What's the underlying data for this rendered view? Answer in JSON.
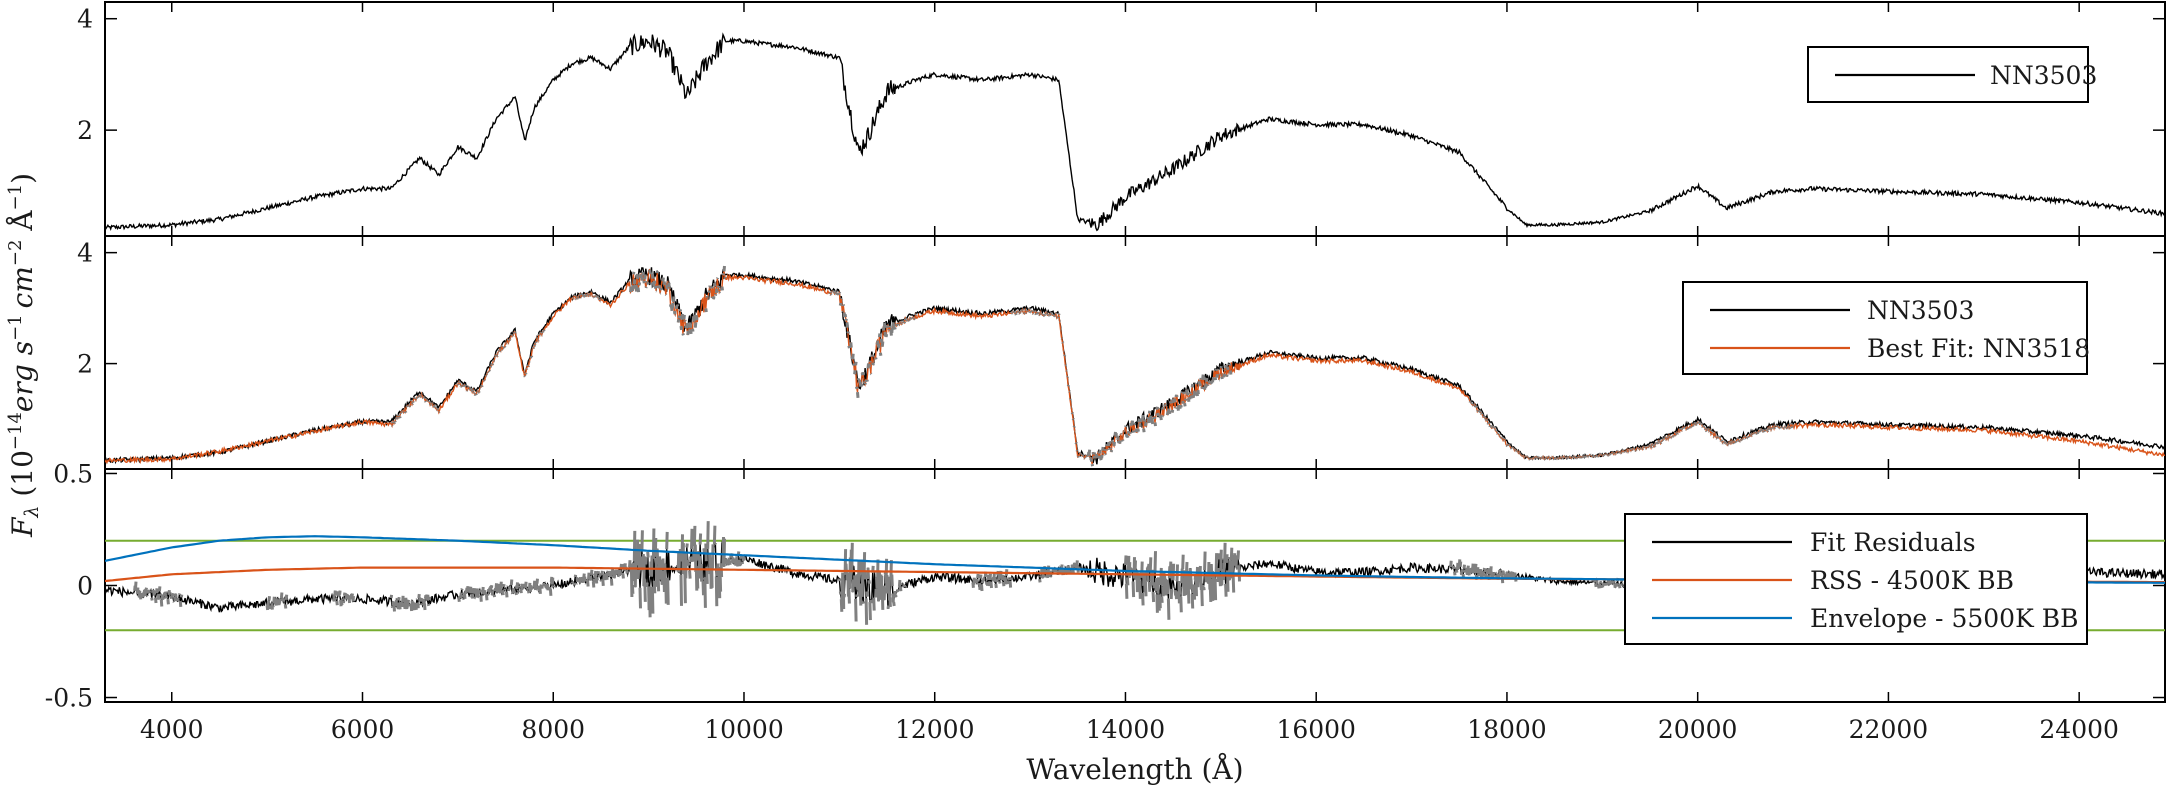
{
  "chart_data": [
    {
      "type": "line",
      "panel": "top",
      "xlabel": "",
      "ylabel": "",
      "xlim": [
        3300,
        24900
      ],
      "ylim": [
        0.1,
        4.3
      ],
      "yticks": [
        "4",
        "2"
      ],
      "ytick_values": [
        4,
        2
      ],
      "legend_position": "top-right",
      "series": [
        {
          "name": "NN3503",
          "color": "#000000",
          "x": [
            3300,
            4000,
            4500,
            5000,
            5500,
            6000,
            6300,
            6600,
            6800,
            7000,
            7200,
            7400,
            7600,
            7700,
            7800,
            8000,
            8200,
            8400,
            8600,
            8800,
            9000,
            9200,
            9400,
            9600,
            9800,
            10000,
            10200,
            10500,
            11000,
            11200,
            11300,
            11500,
            11800,
            12000,
            12500,
            13000,
            13300,
            13500,
            13700,
            14000,
            14500,
            15000,
            15500,
            16000,
            16500,
            17000,
            17500,
            18000,
            18200,
            18500,
            19000,
            19500,
            20000,
            20300,
            20800,
            21200,
            22000,
            23000,
            24000,
            24900
          ],
          "y": [
            0.25,
            0.3,
            0.4,
            0.6,
            0.8,
            0.95,
            0.95,
            1.5,
            1.2,
            1.7,
            1.5,
            2.2,
            2.6,
            1.8,
            2.4,
            2.9,
            3.2,
            3.3,
            3.1,
            3.5,
            3.6,
            3.4,
            2.6,
            3.2,
            3.6,
            3.6,
            3.55,
            3.5,
            3.3,
            1.6,
            1.9,
            2.7,
            2.9,
            3.0,
            2.9,
            3.0,
            2.9,
            0.4,
            0.3,
            0.8,
            1.3,
            1.9,
            2.2,
            2.1,
            2.1,
            1.9,
            1.6,
            0.6,
            0.3,
            0.3,
            0.35,
            0.55,
            1.0,
            0.6,
            0.9,
            0.95,
            0.9,
            0.85,
            0.7,
            0.5
          ]
        }
      ]
    },
    {
      "type": "line",
      "panel": "middle",
      "xlabel": "",
      "ylabel": "",
      "xlim": [
        3300,
        24900
      ],
      "ylim": [
        0.1,
        4.3
      ],
      "yticks": [
        "4",
        "2"
      ],
      "ytick_values": [
        4,
        2
      ],
      "legend_position": "top-right",
      "series": [
        {
          "name": "NN3503",
          "color": "#000000",
          "x": [
            3300,
            4000,
            4500,
            5000,
            5500,
            6000,
            6300,
            6600,
            6800,
            7000,
            7200,
            7400,
            7600,
            7700,
            7800,
            8000,
            8200,
            8400,
            8600,
            8800,
            9000,
            9200,
            9400,
            9600,
            9800,
            10000,
            10200,
            10500,
            11000,
            11200,
            11300,
            11500,
            11800,
            12000,
            12500,
            13000,
            13300,
            13500,
            13700,
            14000,
            14500,
            15000,
            15500,
            16000,
            16500,
            17000,
            17500,
            18000,
            18200,
            18500,
            19000,
            19500,
            20000,
            20300,
            20800,
            21200,
            22000,
            23000,
            24000,
            24900
          ],
          "y": [
            0.25,
            0.3,
            0.4,
            0.6,
            0.8,
            0.95,
            0.95,
            1.5,
            1.2,
            1.7,
            1.5,
            2.2,
            2.6,
            1.8,
            2.4,
            2.9,
            3.2,
            3.3,
            3.1,
            3.5,
            3.6,
            3.4,
            2.6,
            3.2,
            3.6,
            3.6,
            3.55,
            3.5,
            3.3,
            1.6,
            1.9,
            2.7,
            2.9,
            3.0,
            2.9,
            3.0,
            2.9,
            0.4,
            0.3,
            0.8,
            1.3,
            1.9,
            2.2,
            2.1,
            2.1,
            1.9,
            1.6,
            0.6,
            0.3,
            0.3,
            0.35,
            0.55,
            1.0,
            0.6,
            0.9,
            0.95,
            0.9,
            0.85,
            0.7,
            0.5
          ]
        },
        {
          "name": "Best Fit: NN3518",
          "color": "#d95319",
          "x": [
            3300,
            4000,
            4500,
            5000,
            5500,
            6000,
            6300,
            6600,
            6800,
            7000,
            7200,
            7400,
            7600,
            7700,
            7800,
            8000,
            8200,
            8400,
            8600,
            8800,
            9000,
            9200,
            9400,
            9600,
            9800,
            10000,
            10200,
            10500,
            11000,
            11200,
            11300,
            11500,
            11800,
            12000,
            12500,
            13000,
            13300,
            13500,
            13700,
            14000,
            14500,
            15000,
            15500,
            16000,
            16500,
            17000,
            17500,
            18000,
            18200,
            18500,
            19000,
            19500,
            20000,
            20300,
            20800,
            21200,
            22000,
            23000,
            24000,
            24900
          ],
          "y": [
            0.25,
            0.28,
            0.42,
            0.6,
            0.78,
            0.95,
            0.9,
            1.45,
            1.15,
            1.65,
            1.45,
            2.15,
            2.55,
            1.75,
            2.35,
            2.85,
            3.2,
            3.25,
            3.05,
            3.45,
            3.55,
            3.35,
            2.55,
            3.15,
            3.55,
            3.55,
            3.5,
            3.45,
            3.25,
            1.55,
            1.85,
            2.65,
            2.85,
            2.95,
            2.85,
            2.95,
            2.85,
            0.35,
            0.3,
            0.75,
            1.25,
            1.85,
            2.15,
            2.05,
            2.05,
            1.85,
            1.55,
            0.55,
            0.3,
            0.3,
            0.35,
            0.5,
            0.95,
            0.55,
            0.85,
            0.9,
            0.85,
            0.8,
            0.6,
            0.35
          ]
        }
      ]
    },
    {
      "type": "line",
      "panel": "bottom",
      "xlabel": "Wavelength (Å)",
      "ylabel": "",
      "xlim": [
        3300,
        24900
      ],
      "ylim": [
        -0.52,
        0.52
      ],
      "xticks": [
        4000,
        6000,
        8000,
        10000,
        12000,
        14000,
        16000,
        18000,
        20000,
        22000,
        24000
      ],
      "yticks": [
        "0.5",
        "0",
        "-0.5"
      ],
      "ytick_values": [
        0.5,
        0,
        -0.5
      ],
      "legend_position": "right",
      "hlines": [
        0.2,
        -0.2
      ],
      "hline_color": "#77ac30",
      "series": [
        {
          "name": "Fit Residuals",
          "color": "#000000",
          "x": [
            3300,
            4000,
            4500,
            5000,
            5500,
            6000,
            6500,
            7000,
            7500,
            8000,
            8500,
            9000,
            9500,
            10000,
            10500,
            11000,
            11500,
            12000,
            12500,
            13000,
            13500,
            14000,
            14500,
            15000,
            15500,
            16000,
            16500,
            17000,
            17500,
            18000,
            18500,
            19000,
            19500,
            20000,
            20500,
            21000,
            22000,
            23000,
            24000,
            24900
          ],
          "y": [
            -0.02,
            -0.05,
            -0.1,
            -0.08,
            -0.06,
            -0.06,
            -0.08,
            -0.04,
            -0.02,
            0.0,
            0.04,
            0.08,
            0.1,
            0.12,
            0.06,
            0.02,
            -0.02,
            0.04,
            0.02,
            0.04,
            0.08,
            0.04,
            0.0,
            0.06,
            0.1,
            0.06,
            0.06,
            0.08,
            0.07,
            0.05,
            0.02,
            0.01,
            0.0,
            0.02,
            0.01,
            0.01,
            0.03,
            0.05,
            0.06,
            0.05
          ]
        },
        {
          "name": "RSS - 4500K BB",
          "color": "#d95319",
          "x": [
            3300,
            4000,
            5000,
            6000,
            7000,
            8000,
            9000,
            10000,
            11000,
            12000,
            13000,
            14000,
            15000,
            16000,
            17000,
            18000,
            19000,
            20000,
            22000,
            24000,
            24900
          ],
          "y": [
            0.02,
            0.05,
            0.07,
            0.08,
            0.08,
            0.08,
            0.075,
            0.07,
            0.065,
            0.06,
            0.055,
            0.05,
            0.045,
            0.04,
            0.035,
            0.03,
            0.028,
            0.025,
            0.02,
            0.017,
            0.015
          ]
        },
        {
          "name": "Envelope - 5500K BB",
          "color": "#0072bd",
          "x": [
            3300,
            4000,
            4500,
            5000,
            5500,
            6000,
            7000,
            8000,
            9000,
            10000,
            11000,
            12000,
            13000,
            14000,
            15000,
            16000,
            17000,
            18000,
            19000,
            20000,
            22000,
            24000,
            24900
          ],
          "y": [
            0.11,
            0.17,
            0.2,
            0.215,
            0.22,
            0.215,
            0.2,
            0.18,
            0.155,
            0.135,
            0.115,
            0.095,
            0.08,
            0.065,
            0.055,
            0.045,
            0.038,
            0.032,
            0.028,
            0.024,
            0.018,
            0.014,
            0.012
          ]
        }
      ]
    }
  ],
  "figure": {
    "shared_ylabel_tex": "F_λ (10^-14 erg s^-1 cm^-2 Å^-1)",
    "ylabel_parts": {
      "f": "F",
      "lambda_sub": "λ",
      "open": " (10",
      "exp1": "−14",
      "erg": "erg s",
      "exp2": "−1",
      "cm": "cm",
      "exp3": "−2",
      "ang": " Å",
      "exp4": "−1",
      "close": ")"
    },
    "colors": {
      "mask_gray": "#808080",
      "frame": "#000000"
    },
    "gray_regions_middle": [
      [
        6300,
        6800
      ],
      [
        7000,
        7600
      ],
      [
        7700,
        7900
      ],
      [
        8200,
        8500
      ],
      [
        8800,
        9500
      ],
      [
        9600,
        9800
      ],
      [
        10900,
        11800
      ],
      [
        12800,
        13100
      ],
      [
        13100,
        15100
      ],
      [
        17600,
        21000
      ]
    ],
    "gray_regions_bottom": [
      [
        3600,
        4100
      ],
      [
        5000,
        5200
      ],
      [
        5700,
        5900
      ],
      [
        6300,
        6700
      ],
      [
        7000,
        8000
      ],
      [
        8200,
        9200
      ],
      [
        9300,
        10000
      ],
      [
        11000,
        11700
      ],
      [
        12400,
        12800
      ],
      [
        13100,
        13500
      ],
      [
        14000,
        15200
      ],
      [
        17400,
        18100
      ],
      [
        18900,
        19400
      ]
    ]
  }
}
